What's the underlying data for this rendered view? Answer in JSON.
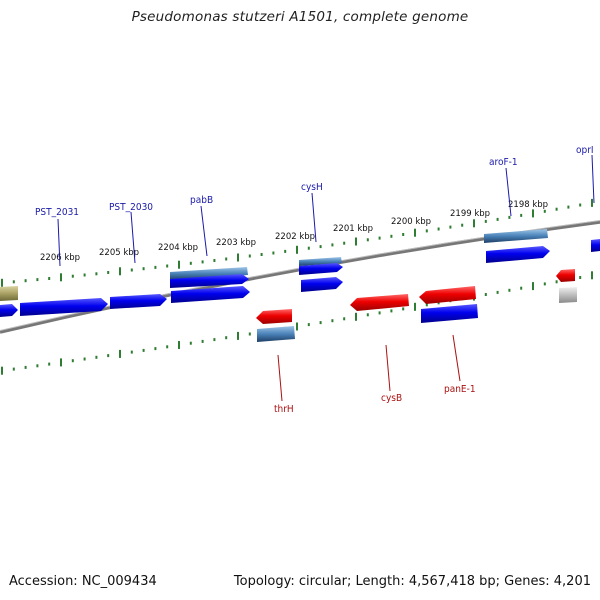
{
  "title": "Pseudomonas stutzeri A1501, complete genome",
  "accession": "Accession: NC_009434",
  "topology": "Topology: circular; Length: 4,567,418 bp; Genes: 4,201",
  "colors": {
    "forward_label": "#1a1aaa",
    "reverse_label": "#aa1111",
    "forward_gene": "#0a0ae6",
    "reverse_gene": "#e00a0a",
    "tick": "#2e7d32",
    "backbone": "#777777",
    "rna": "#4a7fb0"
  },
  "scale": [
    {
      "label": "2206 kbp"
    },
    {
      "label": "2205 kbp"
    },
    {
      "label": "2204 kbp"
    },
    {
      "label": "2203 kbp"
    },
    {
      "label": "2202 kbp"
    },
    {
      "label": "2201 kbp"
    },
    {
      "label": "2200 kbp"
    },
    {
      "label": "2199 kbp"
    },
    {
      "label": "2198 kbp"
    }
  ],
  "forward_labels": [
    "PST_2031",
    "PST_2030",
    "pabB",
    "cysH",
    "aroF-1",
    "oprI"
  ],
  "reverse_labels": [
    "thrH",
    "cysB",
    "panE-1"
  ]
}
